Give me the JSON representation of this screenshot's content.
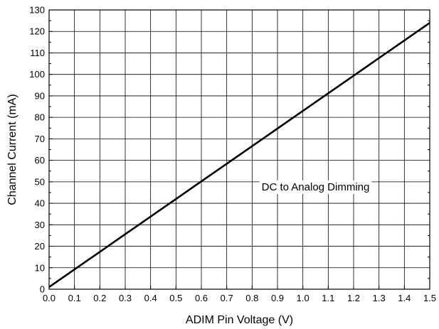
{
  "chart_data": {
    "type": "line",
    "title": "",
    "xlabel": "ADIM Pin Voltage (V)",
    "ylabel": "Channel Current (mA)",
    "xlim": [
      0.0,
      1.5
    ],
    "ylim": [
      0,
      130
    ],
    "x_ticks": [
      "0.0",
      "0.1",
      "0.2",
      "0.3",
      "0.4",
      "0.5",
      "0.6",
      "0.7",
      "0.8",
      "0.9",
      "1.0",
      "1.1",
      "1.2",
      "1.3",
      "1.4",
      "1.5"
    ],
    "y_ticks": [
      "0",
      "10",
      "20",
      "30",
      "40",
      "50",
      "60",
      "70",
      "80",
      "90",
      "100",
      "110",
      "120",
      "130"
    ],
    "grid": true,
    "series": [
      {
        "name": "DC to Analog Dimming",
        "x": [
          0.0,
          0.1,
          0.2,
          0.3,
          0.4,
          0.5,
          0.6,
          0.7,
          0.8,
          0.9,
          1.0,
          1.1,
          1.2,
          1.3,
          1.4,
          1.5
        ],
        "y": [
          1.0,
          9.2,
          17.4,
          25.6,
          33.8,
          42.0,
          50.2,
          58.4,
          66.6,
          74.8,
          83.0,
          91.2,
          99.4,
          107.6,
          115.8,
          124.0
        ],
        "color": "#000000"
      }
    ],
    "annotations": [
      {
        "text": "DC to Analog Dimming",
        "x": 1.05,
        "y": 46
      }
    ]
  }
}
